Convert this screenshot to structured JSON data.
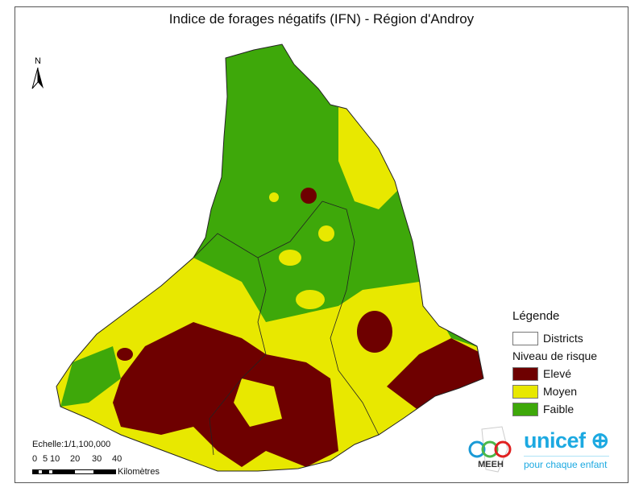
{
  "title": "Indice de forages négatifs (IFN) - Région d'Androy",
  "north_arrow": {
    "label": "N"
  },
  "legend": {
    "heading": "Légende",
    "districts_label": "Districts",
    "risk_heading": "Niveau de risque",
    "classes": [
      {
        "label": "Elevé",
        "color": "#6e0000"
      },
      {
        "label": "Moyen",
        "color": "#e8e800"
      },
      {
        "label": "Faible",
        "color": "#3ea80a"
      }
    ]
  },
  "scale": {
    "text": "Echelle:1/1,100,000",
    "ticks": [
      "0",
      "5",
      "10",
      "20",
      "30",
      "40"
    ],
    "unit": "Kilomètres"
  },
  "logos": {
    "meeh": "MEEH",
    "unicef": "unicef",
    "unicef_tagline": "pour chaque enfant"
  }
}
